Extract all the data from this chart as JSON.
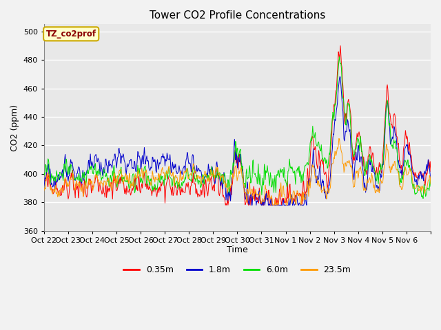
{
  "title": "Tower CO2 Profile Concentrations",
  "xlabel": "Time",
  "ylabel": "CO2 (ppm)",
  "ylim": [
    360,
    505
  ],
  "yticks": [
    360,
    380,
    400,
    420,
    440,
    460,
    480,
    500
  ],
  "annotation_text": "TZ_co2prof",
  "annotation_bg": "#FFFFCC",
  "annotation_border": "#CCAA00",
  "series_colors": [
    "#FF0000",
    "#0000CC",
    "#00DD00",
    "#FF9900"
  ],
  "series_labels": [
    "0.35m",
    "1.8m",
    "6.0m",
    "23.5m"
  ],
  "x_tick_labels": [
    "Oct 22",
    "Oct 23",
    "Oct 24",
    "Oct 25",
    "Oct 26",
    "Oct 27",
    "Oct 28",
    "Oct 29",
    "Oct 30",
    "Oct 31",
    "Nov 1",
    "Nov 2",
    "Nov 3",
    "Nov 4",
    "Nov 5",
    "Nov 6"
  ],
  "n_days": 16,
  "pts_per_day": 48,
  "plot_bg": "#E8E8E8",
  "fig_bg": "#F2F2F2",
  "grid_color": "#FFFFFF",
  "line_width": 0.7
}
